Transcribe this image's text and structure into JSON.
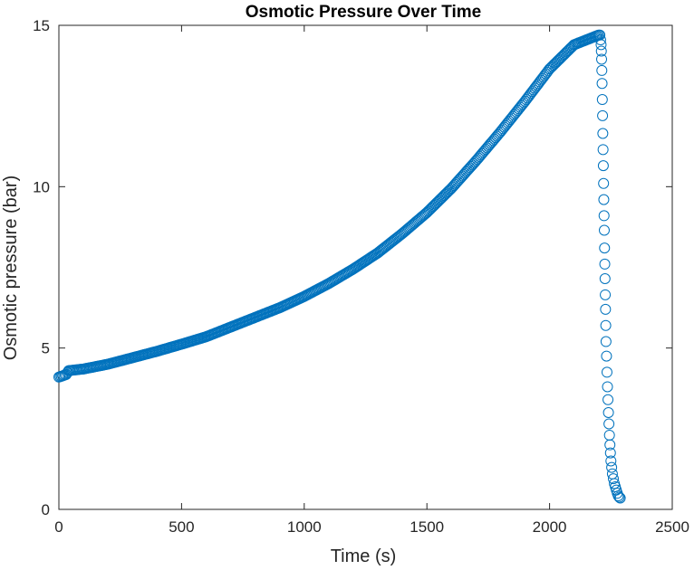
{
  "chart_data": {
    "type": "scatter",
    "title": "Osmotic Pressure Over Time",
    "xlabel": "Time (s)",
    "ylabel": "Osmotic pressure (bar)",
    "xlim": [
      0,
      2500
    ],
    "ylim": [
      0,
      15
    ],
    "xticks": [
      0,
      500,
      1000,
      1500,
      2000,
      2500
    ],
    "yticks": [
      0,
      5,
      10,
      15
    ],
    "grid": false,
    "legend": "none",
    "marker": "open-circle",
    "color": "#0072BD",
    "series": [
      {
        "rising": {
          "x_start": 0,
          "x_end": 2200,
          "step": 5,
          "keypoints": [
            [
              0,
              4.1
            ],
            [
              30,
              4.18
            ],
            [
              40,
              4.3
            ],
            [
              100,
              4.35
            ],
            [
              200,
              4.5
            ],
            [
              300,
              4.7
            ],
            [
              400,
              4.9
            ],
            [
              500,
              5.12
            ],
            [
              600,
              5.35
            ],
            [
              700,
              5.65
            ],
            [
              800,
              5.95
            ],
            [
              900,
              6.25
            ],
            [
              1000,
              6.6
            ],
            [
              1100,
              7.0
            ],
            [
              1200,
              7.45
            ],
            [
              1300,
              7.95
            ],
            [
              1400,
              8.55
            ],
            [
              1500,
              9.2
            ],
            [
              1600,
              9.95
            ],
            [
              1700,
              10.8
            ],
            [
              1800,
              11.7
            ],
            [
              1900,
              12.65
            ],
            [
              2000,
              13.65
            ],
            [
              2100,
              14.4
            ],
            [
              2200,
              14.7
            ]
          ]
        },
        "falling": [
          [
            2205,
            14.7
          ],
          [
            2208,
            14.55
          ],
          [
            2210,
            14.4
          ],
          [
            2211,
            14.2
          ],
          [
            2212,
            13.95
          ],
          [
            2213,
            13.6
          ],
          [
            2214,
            13.2
          ],
          [
            2215,
            12.7
          ],
          [
            2216,
            12.2
          ],
          [
            2217,
            11.65
          ],
          [
            2218,
            11.15
          ],
          [
            2219,
            10.65
          ],
          [
            2220,
            10.1
          ],
          [
            2221,
            9.6
          ],
          [
            2222,
            9.1
          ],
          [
            2223,
            8.65
          ],
          [
            2224,
            8.1
          ],
          [
            2225,
            7.6
          ],
          [
            2226,
            7.15
          ],
          [
            2227,
            6.65
          ],
          [
            2228,
            6.2
          ],
          [
            2229,
            5.7
          ],
          [
            2230,
            5.2
          ],
          [
            2232,
            4.75
          ],
          [
            2234,
            4.25
          ],
          [
            2236,
            3.8
          ],
          [
            2238,
            3.4
          ],
          [
            2240,
            3.0
          ],
          [
            2242,
            2.65
          ],
          [
            2244,
            2.3
          ],
          [
            2246,
            2.0
          ],
          [
            2248,
            1.75
          ],
          [
            2250,
            1.5
          ],
          [
            2253,
            1.3
          ],
          [
            2256,
            1.1
          ],
          [
            2260,
            0.95
          ],
          [
            2264,
            0.8
          ],
          [
            2268,
            0.7
          ],
          [
            2272,
            0.6
          ],
          [
            2276,
            0.5
          ],
          [
            2280,
            0.42
          ],
          [
            2284,
            0.38
          ],
          [
            2288,
            0.35
          ]
        ]
      }
    ]
  }
}
